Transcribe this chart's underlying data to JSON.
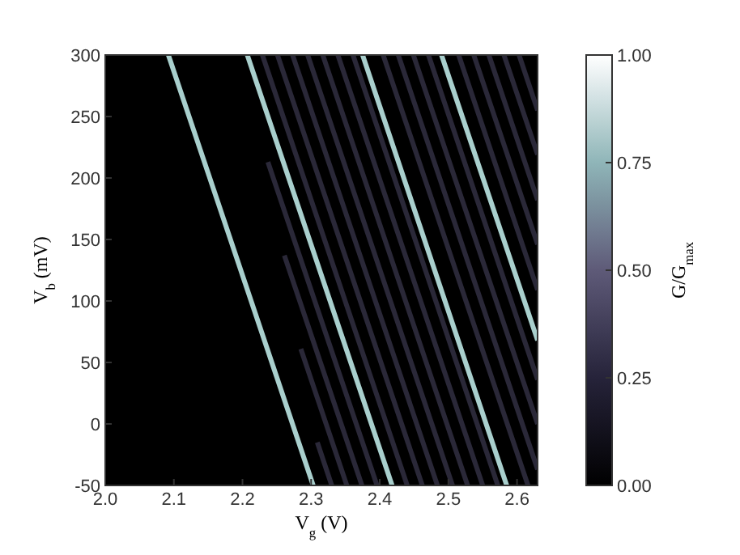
{
  "chart_data": {
    "type": "line",
    "xlabel": "V$_{g}$ (V)",
    "ylabel": "V$_{b}$ (mV)",
    "clabel": "G/G$_{max}$",
    "xlim": [
      2.0,
      2.63
    ],
    "ylim": [
      -50,
      300
    ],
    "xticks": [
      {
        "value": 2.0,
        "label": "2.0"
      },
      2.1,
      2.2,
      2.3,
      2.4,
      2.5,
      2.6
    ],
    "yticks": [
      -50,
      0,
      50,
      100,
      150,
      200,
      250,
      300
    ],
    "clim": [
      0,
      1
    ],
    "cticks": [
      {
        "value": 0,
        "label": "0.00"
      },
      {
        "value": 0.25,
        "label": "0.25"
      },
      {
        "value": 0.5,
        "label": "0.50"
      },
      {
        "value": 0.75,
        "label": "0.75"
      },
      {
        "value": 1,
        "label": "1.00"
      }
    ],
    "grid": false,
    "marker": "none",
    "line_style": "solid",
    "series": [
      {
        "x": [
          2.309,
          2.33
        ],
        "values": [
          -15,
          -50
        ],
        "color": "#2a2838"
      },
      {
        "x": [
          2.285,
          2.352
        ],
        "values": [
          61,
          -50
        ],
        "color": "#2a2838"
      },
      {
        "x": [
          2.261,
          2.374
        ],
        "values": [
          137,
          -50
        ],
        "color": "#2a2838"
      },
      {
        "x": [
          2.237,
          2.396
        ],
        "values": [
          213,
          -50
        ],
        "color": "#2a2838"
      },
      {
        "x": [
          2.229,
          2.44
        ],
        "values": [
          300,
          -50
        ],
        "color": "#2a2838"
      },
      {
        "x": [
          2.251,
          2.462
        ],
        "values": [
          300,
          -50
        ],
        "color": "#2a2838"
      },
      {
        "x": [
          2.273,
          2.484
        ],
        "values": [
          300,
          -50
        ],
        "color": "#2a2838"
      },
      {
        "x": [
          2.295,
          2.506
        ],
        "values": [
          300,
          -50
        ],
        "color": "#2a2838"
      },
      {
        "x": [
          2.317,
          2.528
        ],
        "values": [
          300,
          -50
        ],
        "color": "#2a2838"
      },
      {
        "x": [
          2.339,
          2.55
        ],
        "values": [
          300,
          -50
        ],
        "color": "#2a2838"
      },
      {
        "x": [
          2.361,
          2.572
        ],
        "values": [
          300,
          -50
        ],
        "color": "#2a2838"
      },
      {
        "x": [
          2.405,
          2.616
        ],
        "values": [
          300,
          -50
        ],
        "color": "#2a2838"
      },
      {
        "x": [
          2.427,
          2.63
        ],
        "values": [
          300,
          -37
        ],
        "color": "#2a2838"
      },
      {
        "x": [
          2.449,
          2.63
        ],
        "values": [
          300,
          0
        ],
        "color": "#2a2838"
      },
      {
        "x": [
          2.471,
          2.63
        ],
        "values": [
          300,
          36
        ],
        "color": "#2a2838"
      },
      {
        "x": [
          2.515,
          2.63
        ],
        "values": [
          300,
          109
        ],
        "color": "#2a2838"
      },
      {
        "x": [
          2.537,
          2.63
        ],
        "values": [
          300,
          146
        ],
        "color": "#2a2838"
      },
      {
        "x": [
          2.559,
          2.63
        ],
        "values": [
          300,
          182
        ],
        "color": "#2a2838"
      },
      {
        "x": [
          2.581,
          2.63
        ],
        "values": [
          300,
          219
        ],
        "color": "#2a2838"
      },
      {
        "x": [
          2.603,
          2.63
        ],
        "values": [
          300,
          255
        ],
        "color": "#2a2838"
      },
      {
        "x": [
          2.092,
          2.303
        ],
        "values": [
          300,
          -50
        ],
        "color": "#a9cfcd"
      },
      {
        "x": [
          2.207,
          2.418
        ],
        "values": [
          300,
          -50
        ],
        "color": "#a9cfcd"
      },
      {
        "x": [
          2.375,
          2.585
        ],
        "values": [
          300,
          -50
        ],
        "color": "#a9cfcd"
      },
      {
        "x": [
          2.49,
          2.63
        ],
        "values": [
          300,
          68
        ],
        "color": "#a9cfcd"
      }
    ]
  }
}
